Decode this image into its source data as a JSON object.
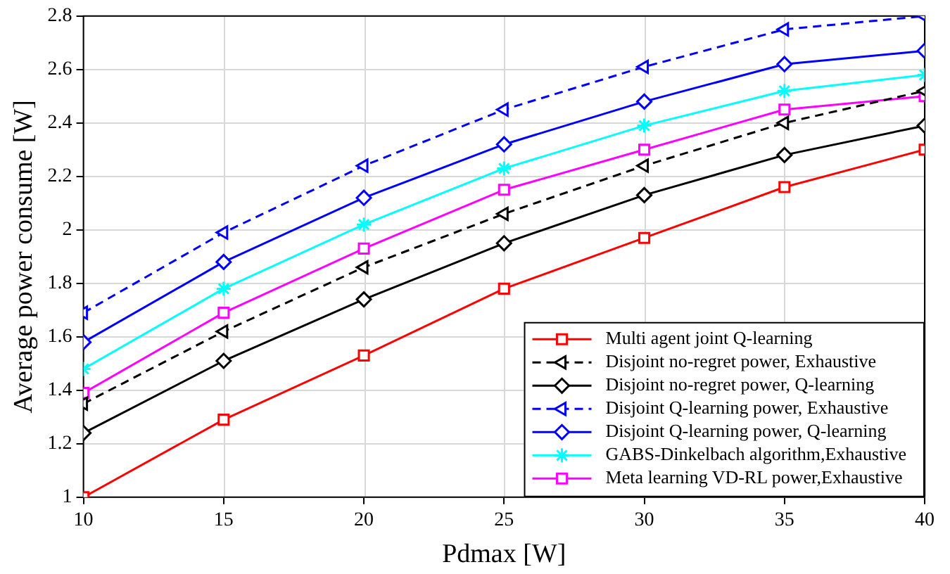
{
  "chart_data": {
    "type": "line",
    "xlabel": "Pdmax [W]",
    "ylabel": "Average power consume [W]",
    "x": [
      10,
      15,
      20,
      25,
      30,
      35,
      40
    ],
    "xlim": [
      10,
      40
    ],
    "xticks": [
      10,
      15,
      20,
      25,
      30,
      35,
      40
    ],
    "ylim": [
      1,
      2.8
    ],
    "yticks": [
      1,
      1.2,
      1.4,
      1.6,
      1.8,
      2,
      2.2,
      2.4,
      2.6,
      2.8
    ],
    "grid": true,
    "legend": "bottom right",
    "series": [
      {
        "name": "Multi agent joint Q-learning",
        "color": "#ff0000",
        "marker": "square",
        "line_style": "solid",
        "values": [
          1.0,
          1.29,
          1.53,
          1.78,
          1.97,
          2.16,
          2.3
        ]
      },
      {
        "name": "Disjoint no-regret power, Exhaustive",
        "color": "#000000",
        "marker": "triangle",
        "line_style": "dashed",
        "values": [
          1.35,
          1.62,
          1.86,
          2.06,
          2.24,
          2.4,
          2.52
        ]
      },
      {
        "name": "Disjoint no-regret power, Q-learning",
        "color": "#000000",
        "marker": "diamond",
        "line_style": "solid",
        "values": [
          1.24,
          1.51,
          1.74,
          1.95,
          2.13,
          2.28,
          2.39
        ]
      },
      {
        "name": "Disjoint Q-learning power, Exhaustive",
        "color": "#0000ff",
        "marker": "triangle",
        "line_style": "dashed",
        "values": [
          1.69,
          1.99,
          2.24,
          2.45,
          2.61,
          2.75,
          2.8
        ]
      },
      {
        "name": "Disjoint Q-learning power, Q-learning",
        "color": "#0000ff",
        "marker": "diamond",
        "line_style": "solid",
        "values": [
          1.58,
          1.88,
          2.12,
          2.32,
          2.48,
          2.62,
          2.67
        ]
      },
      {
        "name": "GABS-Dinkelbach algorithm,Exhaustive",
        "color": "#00ffff",
        "marker": "cross",
        "line_style": "solid",
        "values": [
          1.48,
          1.78,
          2.02,
          2.23,
          2.39,
          2.52,
          2.58
        ]
      },
      {
        "name": "Meta learning VD-RL power,Exhaustive",
        "color": "#ff00ff",
        "marker": "square",
        "line_style": "solid",
        "values": [
          1.39,
          1.69,
          1.93,
          2.15,
          2.3,
          2.45,
          2.5
        ]
      }
    ]
  }
}
